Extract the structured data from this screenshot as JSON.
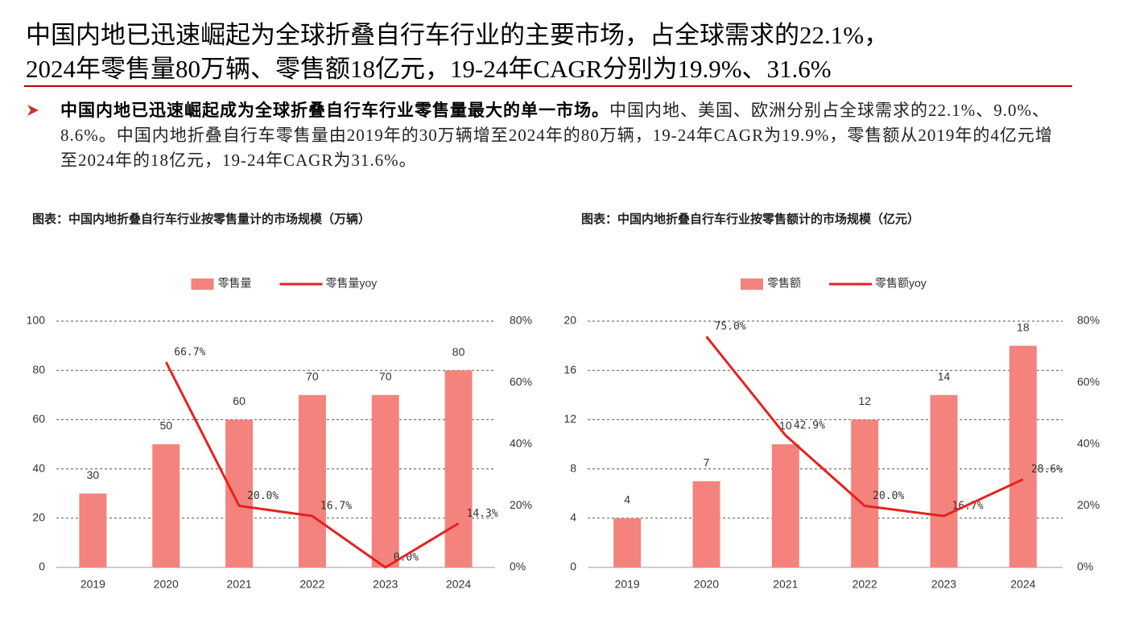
{
  "header": {
    "title": [
      "中国内地已迅速崛起为全球折叠自行车行业的主要市场，占全球需求的22.1%，",
      "2024年零售量80万辆、零售额18亿元，19-24年CAGR分别为19.9%、31.6%"
    ]
  },
  "bullet": {
    "bold": "中国内地已迅速崛起成为全球折叠自行车行业零售量最大的单一市场。",
    "text": "中国内地、美国、欧洲分别占全球需求的22.1%、9.0%、8.6%。中国内地折叠自行车零售量由2019年的30万辆增至2024年的80万辆，19-24年CAGR为19.9%，零售额从2019年的4亿元增至2024年的18亿元，19-24年CAGR为31.6%。"
  },
  "chart_data": [
    {
      "type": "bar",
      "title": "图表：中国内地折叠自行车行业按零售量计的市场规模（万辆）",
      "categories": [
        "2019",
        "2020",
        "2021",
        "2022",
        "2023",
        "2024"
      ],
      "series": [
        {
          "name": "零售量",
          "color": "#f4837d",
          "values": [
            30,
            50,
            60,
            70,
            70,
            80
          ]
        },
        {
          "name": "零售量yoy",
          "type": "line",
          "axis": "y2",
          "color": "#e3231f",
          "values": [
            null,
            66.7,
            20.0,
            16.7,
            0.0,
            14.3
          ],
          "value_labels": [
            null,
            "66.7%",
            "20.0%",
            "16.7%",
            "0.0%",
            "14.3%"
          ]
        }
      ],
      "ylim": [
        0,
        100
      ],
      "yticks": [
        0,
        20,
        40,
        60,
        80,
        100
      ],
      "y2lim": [
        0,
        80
      ],
      "y2ticks": [
        {
          "value": 0,
          "label": "0%"
        },
        {
          "value": 20,
          "label": "20%"
        },
        {
          "value": 40,
          "label": "40%"
        },
        {
          "value": 60,
          "label": "60%"
        },
        {
          "value": 80,
          "label": "80%"
        }
      ],
      "grid": true,
      "legend": "top"
    },
    {
      "type": "bar",
      "title": "图表：中国内地折叠自行车行业按零售额计的市场规模（亿元）",
      "categories": [
        "2019",
        "2020",
        "2021",
        "2022",
        "2023",
        "2024"
      ],
      "series": [
        {
          "name": "零售额",
          "color": "#f4837d",
          "values": [
            4,
            7,
            10,
            12,
            14,
            18
          ]
        },
        {
          "name": "零售额yoy",
          "type": "line",
          "axis": "y2",
          "color": "#e3231f",
          "values": [
            null,
            75.0,
            42.9,
            20.0,
            16.7,
            28.6
          ],
          "value_labels": [
            null,
            "75.0%",
            "42.9%",
            "20.0%",
            "16.7%",
            "28.6%"
          ]
        }
      ],
      "ylim": [
        0,
        20
      ],
      "yticks": [
        0,
        4,
        8,
        12,
        16,
        20
      ],
      "y2lim": [
        0,
        80
      ],
      "y2ticks": [
        {
          "value": 0,
          "label": "0%"
        },
        {
          "value": 20,
          "label": "20%"
        },
        {
          "value": 40,
          "label": "40%"
        },
        {
          "value": 60,
          "label": "60%"
        },
        {
          "value": 80,
          "label": "80%"
        }
      ],
      "grid": true,
      "legend": "top"
    }
  ]
}
